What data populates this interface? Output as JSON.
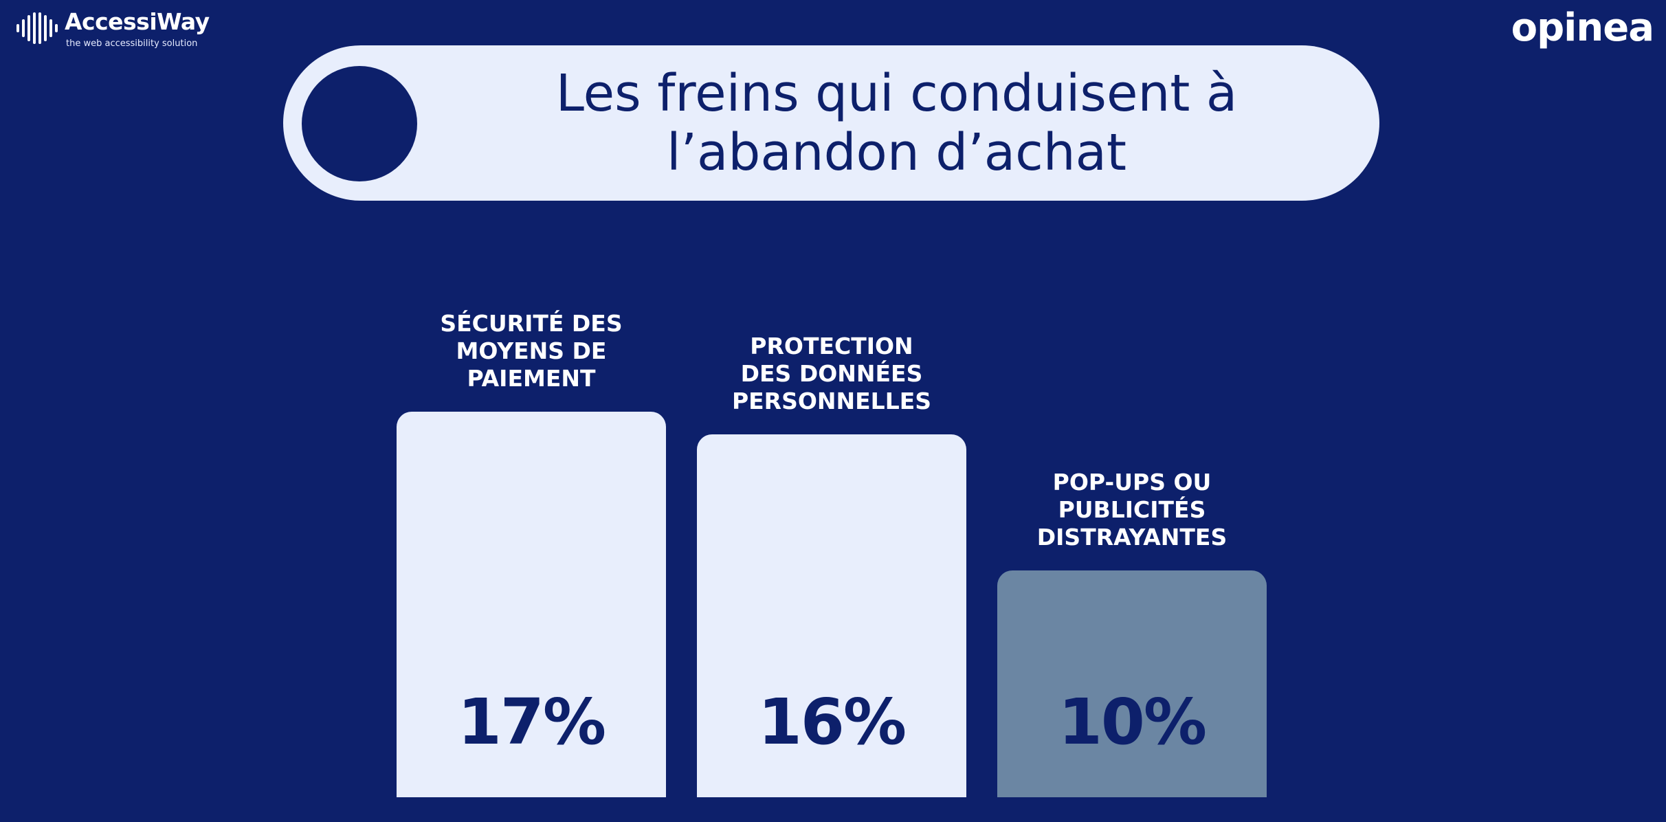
{
  "branding": {
    "left_logo_name": "AccessiWay",
    "left_logo_tagline": "the web accessibility solution",
    "right_logo_name": "opinea"
  },
  "title": "Les freins qui conduisent à\nl’abandon d’achat",
  "colors": {
    "background": "#0d206b",
    "pill": "#e8eefc",
    "bar_light": "#e8eefc",
    "bar_muted": "#6b86a3",
    "text_dark": "#0d206b",
    "text_light": "#ffffff"
  },
  "chart_data": {
    "type": "bar",
    "categories": [
      "SÉCURITÉ DES\nMOYENS DE\nPAIEMENT",
      "PROTECTION\nDES DONNÉES\nPERSONNELLES",
      "POP-UPS OU\nPUBLICITÉS\nDISTRAYANTES"
    ],
    "values": [
      17,
      16,
      10
    ],
    "value_labels": [
      "17%",
      "16%",
      "10%"
    ],
    "bar_colors": [
      "#e8eefc",
      "#e8eefc",
      "#6b86a3"
    ],
    "unit": "%",
    "title": "Les freins qui conduisent à\nl’abandon d’achat",
    "grid": false,
    "legend": "none"
  }
}
